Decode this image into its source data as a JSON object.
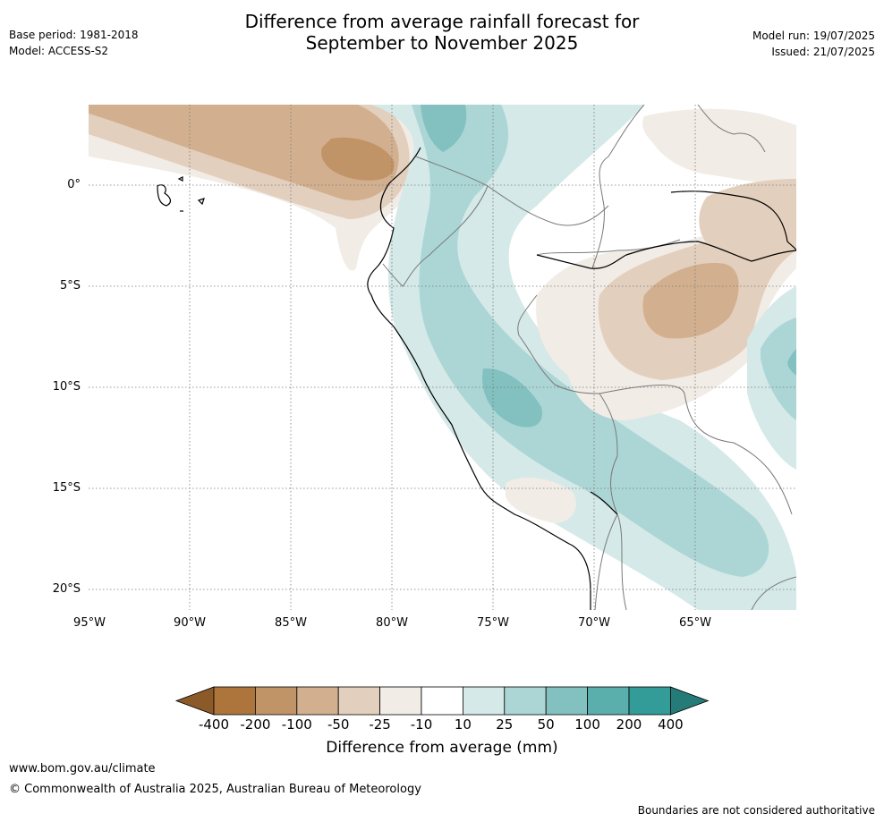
{
  "header": {
    "title_line1": "Difference from average rainfall forecast for",
    "title_line2": "September to November 2025",
    "base_period": "Base period: 1981-2018",
    "model": "Model: ACCESS-S2",
    "model_run": "Model run: 19/07/2025",
    "issued": "Issued: 21/07/2025"
  },
  "map": {
    "lat_ticks": [
      "0°",
      "5°S",
      "10°S",
      "15°S",
      "20°S"
    ],
    "lon_ticks": [
      "95°W",
      "90°W",
      "85°W",
      "80°W",
      "75°W",
      "70°W",
      "65°W"
    ]
  },
  "colorbar": {
    "title": "Difference from average (mm)",
    "labels": [
      "-400",
      "-200",
      "-100",
      "-50",
      "-25",
      "-10",
      "10",
      "25",
      "50",
      "100",
      "200",
      "400"
    ],
    "colors": [
      "#8c5a28",
      "#ad743b",
      "#c19468",
      "#d2b08f",
      "#e3cfbd",
      "#f1ece6",
      "#ffffff",
      "#d4e9e8",
      "#acd6d5",
      "#82c1bf",
      "#5aaeac",
      "#339b98",
      "#247b78"
    ]
  },
  "footer": {
    "website": "www.bom.gov.au/climate",
    "copyright": "© Commonwealth of Australia 2025, Australian Bureau of Meteorology",
    "disclaimer": "Boundaries are not considered authoritative"
  }
}
